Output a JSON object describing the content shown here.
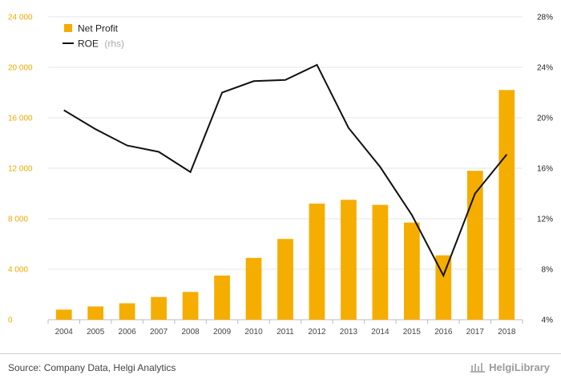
{
  "chart_data": {
    "type": "bar",
    "categories": [
      "2004",
      "2005",
      "2006",
      "2007",
      "2008",
      "2009",
      "2010",
      "2011",
      "2012",
      "2013",
      "2014",
      "2015",
      "2016",
      "2017",
      "2018"
    ],
    "series": [
      {
        "name": "Net Profit",
        "kind": "bar",
        "axis": "left",
        "color": "#f5ad00",
        "values": [
          800,
          1050,
          1300,
          1800,
          2200,
          3500,
          4900,
          6400,
          9200,
          9500,
          9100,
          7700,
          5100,
          11800,
          18200
        ]
      },
      {
        "name": "ROE",
        "kind": "line",
        "axis": "right",
        "color": "#111111",
        "values": [
          20.6,
          19.1,
          17.8,
          17.3,
          15.7,
          22.0,
          22.9,
          23.0,
          24.2,
          19.2,
          16.1,
          12.3,
          7.5,
          14.0,
          17.1
        ]
      }
    ],
    "y_left": {
      "min": 0,
      "max": 24000,
      "ticks": [
        0,
        4000,
        8000,
        12000,
        16000,
        20000,
        24000
      ],
      "tick_labels": [
        "0",
        "4 000",
        "8 000",
        "12 000",
        "16 000",
        "20 000",
        "24 000"
      ]
    },
    "y_right": {
      "min": 4,
      "max": 28,
      "ticks": [
        4,
        8,
        12,
        16,
        20,
        24,
        28
      ],
      "tick_labels": [
        "4%",
        "8%",
        "12%",
        "16%",
        "20%",
        "24%",
        "28%"
      ]
    },
    "grid": true,
    "legend": {
      "position": "top-left",
      "items": [
        {
          "label": "Net Profit",
          "suffix": ""
        },
        {
          "label": "ROE",
          "suffix": "(rhs)"
        }
      ]
    }
  },
  "footer": {
    "source": "Source: Company Data, Helgi Analytics",
    "brand": "HelgiLibrary"
  }
}
